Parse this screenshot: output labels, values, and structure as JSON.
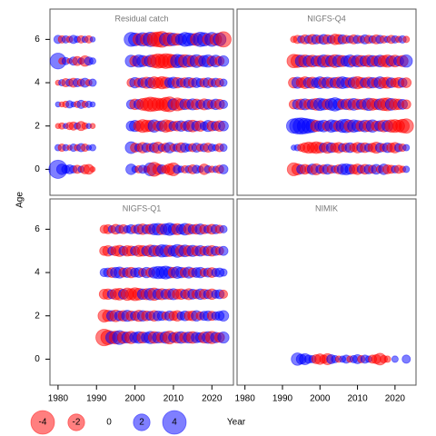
{
  "xlabel": "Year",
  "ylabel": "Age",
  "legend": {
    "values": [
      -4,
      -2,
      0,
      2,
      4
    ]
  },
  "chart_data": [
    {
      "type": "bubble",
      "title": "Residual catch",
      "xlim": [
        1977.9,
        2025.6
      ],
      "ylim": [
        -1.2,
        7.4
      ],
      "yticks": [
        0,
        2,
        4,
        6
      ],
      "x": [
        1980,
        1981,
        1982,
        1983,
        1984,
        1985,
        1986,
        1987,
        1988,
        1989,
        1999,
        2000,
        2001,
        2002,
        2003,
        2004,
        2005,
        2006,
        2007,
        2008,
        2009,
        2010,
        2011,
        2012,
        2013,
        2014,
        2015,
        2016,
        2017,
        2018,
        2019,
        2020,
        2021,
        2022,
        2023
      ],
      "ages": [
        0,
        1,
        2,
        3,
        4,
        5,
        6
      ],
      "residuals": [
        [
          2.4,
          0.8,
          0.5,
          0.6,
          0.4,
          -0.5,
          0.3,
          -0.6,
          -0.7,
          -0.2,
          0.8,
          0.3,
          -0.4,
          0.5,
          -0.3,
          1.2,
          -1.4,
          -0.8,
          0.6,
          -0.5,
          -0.9,
          -1.2,
          0.5,
          0.3,
          -0.4,
          0.4,
          -0.6,
          0.5,
          0.3,
          -0.8,
          0.4,
          -0.3,
          0.3,
          -0.5,
          0.6
        ],
        [
          0.3,
          -0.4,
          0.3,
          -0.2,
          0.4,
          -0.3,
          0.5,
          -0.4,
          0.2,
          0.3,
          1.0,
          -0.6,
          0.5,
          -0.8,
          0.6,
          -0.5,
          0.7,
          -0.9,
          0.4,
          -0.6,
          0.8,
          -0.4,
          0.5,
          -0.7,
          0.6,
          0.4,
          -0.5,
          0.6,
          -0.4,
          0.5,
          -0.6,
          0.4,
          0.3,
          -0.5,
          0.4
        ],
        [
          -0.2,
          -0.3,
          0.2,
          -0.4,
          -0.5,
          0.3,
          -0.6,
          -0.3,
          0.2,
          -0.2,
          0.7,
          0.9,
          -0.8,
          -1.2,
          -1.0,
          -0.9,
          1.1,
          -0.7,
          0.8,
          -1.1,
          -0.9,
          0.6,
          -0.7,
          0.8,
          -0.6,
          0.9,
          -1.0,
          0.7,
          -0.8,
          0.5,
          0.9,
          -0.7,
          0.6,
          -0.8,
          0.7
        ],
        [
          0.2,
          -0.2,
          -0.3,
          0.4,
          0.2,
          -0.3,
          0.5,
          -0.3,
          0.3,
          0.2,
          0.6,
          -0.8,
          0.7,
          -1.0,
          -1.2,
          -1.5,
          -1.3,
          -1.1,
          -1.0,
          -1.4,
          -1.6,
          0.9,
          -1.2,
          -0.9,
          0.8,
          -0.7,
          0.9,
          -0.8,
          0.6,
          -0.9,
          0.7,
          -0.6,
          0.8,
          -0.7,
          0.5
        ],
        [
          -0.2,
          0.3,
          -0.5,
          0.4,
          -0.6,
          0.5,
          -0.4,
          0.6,
          -0.3,
          0.4,
          -0.5,
          0.8,
          -0.6,
          0.7,
          -0.9,
          0.8,
          -1.0,
          -0.8,
          -1.1,
          -0.9,
          0.7,
          0.9,
          -0.8,
          0.6,
          -0.7,
          0.8,
          -0.6,
          0.7,
          0.5,
          -0.6,
          0.7,
          -0.5,
          0.6,
          -0.5,
          0.4
        ],
        [
          1.8,
          -0.3,
          0.4,
          -0.2,
          0.5,
          -0.6,
          0.3,
          -0.8,
          0.5,
          0.3,
          1.0,
          -0.8,
          1.1,
          0.9,
          -0.7,
          1.0,
          -1.2,
          -1.5,
          -1.3,
          -1.6,
          -1.4,
          -1.2,
          1.3,
          1.1,
          -1.2,
          1.0,
          -0.9,
          1.2,
          -0.8,
          0.9,
          1.1,
          -0.7,
          1.0,
          -0.6,
          0.8
        ],
        [
          0.5,
          -0.4,
          0.4,
          -0.3,
          0.5,
          0.3,
          -0.4,
          0.3,
          -0.4,
          0.2,
          1.4,
          1.2,
          -1.0,
          1.3,
          -1.1,
          1.5,
          -1.4,
          -1.6,
          -1.8,
          1.2,
          -1.3,
          1.1,
          -1.0,
          0.9,
          1.4,
          1.2,
          1.0,
          -1.1,
          1.5,
          1.3,
          -0.9,
          1.4,
          -1.0,
          1.2,
          -1.7
        ]
      ]
    },
    {
      "type": "bubble",
      "title": "NIGFS-Q4",
      "xlim": [
        1977.9,
        2025.6
      ],
      "ylim": [
        -1.2,
        7.4
      ],
      "x": [
        1993,
        1994,
        1995,
        1996,
        1997,
        1998,
        1999,
        2000,
        2001,
        2002,
        2003,
        2004,
        2005,
        2006,
        2007,
        2008,
        2009,
        2010,
        2011,
        2012,
        2013,
        2014,
        2015,
        2016,
        2017,
        2018,
        2019,
        2020,
        2021,
        2022,
        2023
      ],
      "ages": [
        0,
        1,
        2,
        3,
        4,
        5,
        6
      ],
      "residuals": [
        [
          -1.2,
          -0.9,
          0.6,
          -0.7,
          -0.5,
          0.8,
          -0.9,
          0.5,
          -0.6,
          0.7,
          -0.5,
          0.4,
          -0.6,
          0.8,
          0.9,
          0.7,
          -0.6,
          -0.8,
          0.5,
          -0.7,
          0.6,
          -0.5,
          0.7,
          -0.4,
          0.8,
          -0.6,
          -0.5,
          0.4,
          -0.5,
          -0.3,
          0.3
        ],
        [
          0.2,
          0.3,
          -0.4,
          -0.7,
          -0.9,
          -0.8,
          -1.0,
          -0.8,
          0.6,
          -0.9,
          0.7,
          -0.6,
          -0.8,
          0.5,
          -0.6,
          0.7,
          -0.5,
          -0.8,
          0.6,
          -0.7,
          0.5,
          -0.6,
          -0.9,
          0.6,
          -0.5,
          0.7,
          -0.6,
          -0.8,
          0.5,
          -0.4,
          0.3
        ],
        [
          1.5,
          1.8,
          1.9,
          1.7,
          1.4,
          1.2,
          -0.9,
          0.8,
          1.0,
          -0.7,
          1.1,
          0.9,
          -0.8,
          1.2,
          1.3,
          -1.0,
          1.1,
          0.9,
          -0.8,
          1.0,
          -0.9,
          1.1,
          -0.7,
          0.8,
          -1.0,
          0.9,
          -1.1,
          -1.2,
          -1.0,
          -1.3,
          -1.5
        ],
        [
          -0.6,
          0.7,
          -0.8,
          0.9,
          -0.7,
          0.8,
          -1.0,
          1.1,
          0.9,
          -0.8,
          1.0,
          1.3,
          0.9,
          -0.7,
          0.8,
          -0.9,
          1.0,
          -0.8,
          0.7,
          -0.9,
          1.1,
          -1.0,
          -0.8,
          0.9,
          -1.1,
          -1.2,
          1.0,
          -0.9,
          -0.8,
          0.7,
          -0.6
        ],
        [
          -0.8,
          0.9,
          -0.7,
          -1.0,
          0.8,
          -0.9,
          0.7,
          1.0,
          -0.8,
          0.9,
          -0.7,
          0.8,
          -0.9,
          1.0,
          0.8,
          -0.7,
          0.9,
          -1.1,
          -0.8,
          0.7,
          -0.9,
          0.8,
          -0.7,
          1.0,
          -0.8,
          -0.9,
          0.7,
          -0.6,
          -0.8,
          0.6,
          -0.7
        ],
        [
          -1.3,
          -1.2,
          1.0,
          -1.1,
          0.9,
          -1.0,
          0.8,
          -0.9,
          1.1,
          -1.0,
          0.9,
          -1.2,
          1.0,
          -0.9,
          0.8,
          1.1,
          -0.8,
          1.0,
          -0.9,
          0.8,
          -1.0,
          0.9,
          -0.8,
          1.0,
          -0.9,
          -1.1,
          0.8,
          -1.0,
          0.7,
          -0.9,
          1.1
        ],
        [
          -0.3,
          -0.5,
          0.4,
          -0.6,
          0.5,
          -0.7,
          0.6,
          -0.5,
          0.7,
          -0.6,
          0.5,
          -0.8,
          -0.7,
          0.6,
          -0.5,
          0.4,
          -0.6,
          0.5,
          -0.4,
          0.6,
          -0.5,
          0.4,
          -0.6,
          0.5,
          -0.4,
          0.3,
          -0.5,
          0.4,
          -0.3,
          0.4,
          -0.3
        ]
      ]
    },
    {
      "type": "bubble",
      "title": "NIGFS-Q1",
      "xlim": [
        1977.9,
        2025.6
      ],
      "ylim": [
        -1.2,
        7.4
      ],
      "yticks": [
        0,
        2,
        4,
        6
      ],
      "xticks": [
        1980,
        1990,
        2000,
        2010,
        2020
      ],
      "x": [
        1992,
        1993,
        1994,
        1995,
        1996,
        1997,
        1998,
        1999,
        2000,
        2001,
        2002,
        2003,
        2004,
        2005,
        2006,
        2007,
        2008,
        2009,
        2010,
        2011,
        2012,
        2013,
        2014,
        2015,
        2016,
        2017,
        2018,
        2019,
        2020,
        2021,
        2022,
        2023
      ],
      "ages": [
        1,
        2,
        3,
        4,
        5,
        6
      ],
      "residuals": [
        [
          -2.0,
          -1.5,
          1.1,
          -1.2,
          1.4,
          -1.0,
          0.9,
          -1.1,
          0.8,
          1.0,
          -0.9,
          0.8,
          1.1,
          -1.0,
          0.9,
          -0.8,
          1.0,
          -1.2,
          0.7,
          -0.9,
          1.0,
          -0.8,
          0.9,
          -1.0,
          0.8,
          0.7,
          -0.9,
          1.0,
          -1.1,
          0.8,
          -0.7,
          0.9
        ],
        [
          -1.1,
          -0.9,
          0.8,
          -1.0,
          0.7,
          -0.8,
          0.9,
          -0.7,
          0.6,
          -0.9,
          0.8,
          -0.7,
          0.6,
          -0.8,
          0.7,
          0.6,
          -0.5,
          0.7,
          -0.6,
          -0.8,
          0.5,
          0.7,
          -0.6,
          -0.7,
          0.8,
          -0.5,
          0.6,
          0.7,
          -0.6,
          0.5,
          0.6,
          0.8
        ],
        [
          -0.7,
          -0.8,
          0.6,
          -0.9,
          -1.0,
          0.7,
          -1.1,
          -0.9,
          -1.2,
          -1.0,
          0.8,
          -0.9,
          1.0,
          -1.1,
          0.8,
          -0.9,
          0.7,
          -0.8,
          0.9,
          -0.7,
          -0.8,
          0.6,
          -0.9,
          0.7,
          -0.6,
          0.8,
          -0.7,
          0.6,
          -0.8,
          0.5,
          0.6,
          -0.5
        ],
        [
          0.5,
          0.6,
          -0.7,
          0.8,
          0.9,
          -0.6,
          0.7,
          -0.8,
          0.6,
          0.7,
          -0.5,
          0.8,
          -0.6,
          0.9,
          1.1,
          1.0,
          1.2,
          0.9,
          -0.8,
          1.0,
          0.8,
          -0.7,
          0.9,
          -0.6,
          0.7,
          0.8,
          -0.5,
          0.6,
          -0.7,
          0.5,
          0.6,
          0.4
        ],
        [
          -0.6,
          -0.8,
          0.5,
          -0.7,
          -0.9,
          0.6,
          -0.8,
          -0.7,
          0.6,
          -0.9,
          -0.8,
          0.7,
          -1.0,
          0.9,
          -0.8,
          1.1,
          1.0,
          -0.9,
          0.8,
          1.2,
          -0.9,
          1.0,
          -0.8,
          0.9,
          -0.7,
          0.8,
          -0.6,
          0.7,
          -0.8,
          0.6,
          -0.5,
          0.6
        ],
        [
          -0.5,
          -0.6,
          0.4,
          -0.7,
          0.5,
          -0.6,
          0.4,
          0.6,
          -0.5,
          0.7,
          -0.8,
          0.6,
          -0.7,
          0.9,
          1.0,
          -0.8,
          0.9,
          1.1,
          0.8,
          -0.9,
          0.7,
          1.0,
          -0.8,
          0.6,
          -0.7,
          0.8,
          -0.6,
          0.5,
          -0.7,
          0.6,
          -0.5,
          0.4
        ]
      ]
    },
    {
      "type": "bubble",
      "title": "NIMIK",
      "xlim": [
        1977.9,
        2025.6
      ],
      "ylim": [
        -1.2,
        7.4
      ],
      "xticks": [
        1980,
        1990,
        2000,
        2010,
        2020
      ],
      "x": [
        1994,
        1995,
        1996,
        1997,
        1998,
        1999,
        2000,
        2001,
        2002,
        2003,
        2004,
        2005,
        2006,
        2007,
        2008,
        2009,
        2010,
        2011,
        2012,
        2013,
        2014,
        2015,
        2016,
        2017,
        2018,
        2020,
        2023
      ],
      "ages": [
        0
      ],
      "residuals": [
        [
          1.1,
          0.7,
          0.9,
          0.5,
          0.4,
          -0.6,
          -0.8,
          -0.5,
          -0.9,
          0.6,
          0.4,
          -0.3,
          0.3,
          0.5,
          -0.3,
          0.4,
          0.6,
          -0.4,
          0.5,
          0.3,
          -0.5,
          -0.6,
          -1.0,
          -0.4,
          -0.3,
          0.3,
          0.5
        ]
      ]
    }
  ]
}
